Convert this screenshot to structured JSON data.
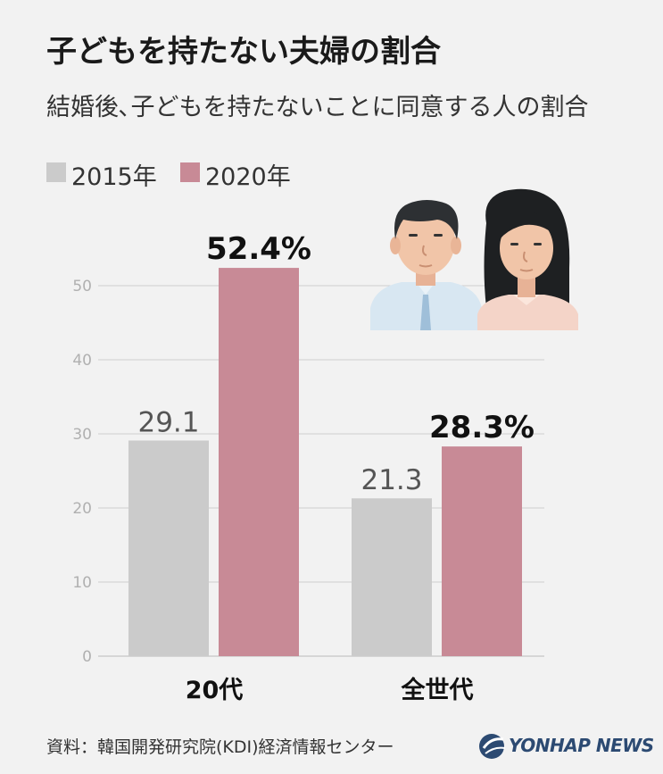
{
  "title": "子どもを持たない夫婦の割合",
  "subtitle": "結婚後､子どもを持たないことに同意する人の割合",
  "footer": "資料：韓国開発研究院(KDI)経済情報センター",
  "logo_text": "YONHAP NEWS",
  "colors": {
    "series_2015": "#cbcbcb",
    "series_2020": "#c88a96",
    "grid": "#cfcfcf"
  },
  "chart_data": {
    "type": "bar",
    "title": "子どもを持たない夫婦の割合",
    "subtitle": "結婚後､子どもを持たないことに同意する人の割合",
    "categories": [
      "20代",
      "全世代"
    ],
    "series": [
      {
        "name": "2015年",
        "values": [
          29.1,
          21.3
        ],
        "labels": [
          "29.1",
          "21.3"
        ]
      },
      {
        "name": "2020年",
        "values": [
          52.4,
          28.3
        ],
        "labels": [
          "52.4%",
          "28.3%"
        ]
      }
    ],
    "yticks": [
      "0",
      "10",
      "20",
      "30",
      "40",
      "50"
    ],
    "ylim": [
      0,
      60
    ],
    "grid": true,
    "legend_position": "top-left"
  }
}
